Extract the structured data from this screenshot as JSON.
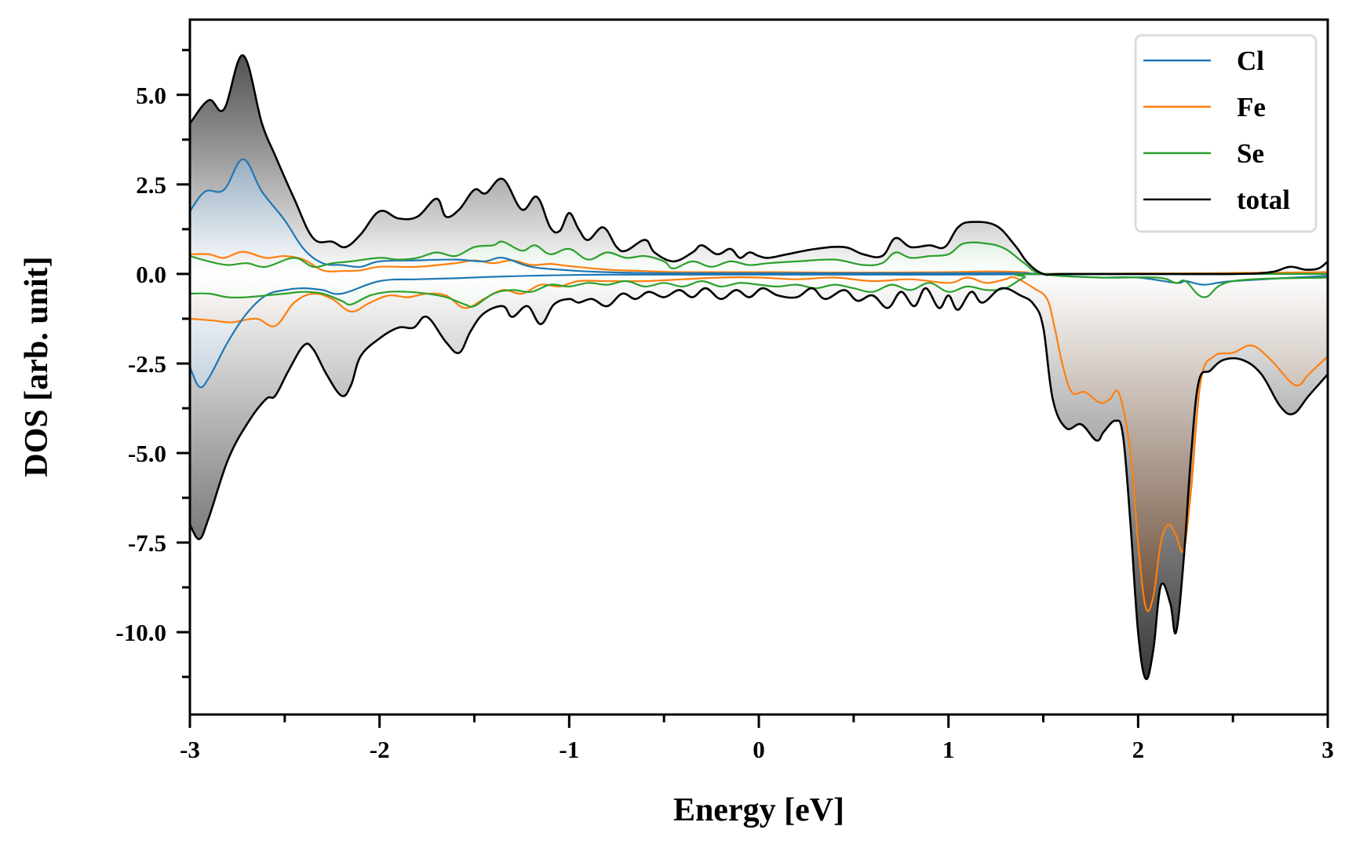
{
  "chart_data": {
    "type": "area",
    "title": "",
    "xlabel": "Energy [eV]",
    "ylabel": "DOS [arb. unit]",
    "xlim": [
      -3,
      3
    ],
    "ylim": [
      -12.3,
      7.1
    ],
    "xticks": [
      -3,
      -2,
      -1,
      0,
      1,
      2,
      3
    ],
    "xtick_labels": [
      "-3",
      "-2",
      "-1",
      "0",
      "1",
      "2",
      "3"
    ],
    "yticks": [
      5.0,
      2.5,
      0.0,
      -2.5,
      -5.0,
      -7.5,
      -10.0
    ],
    "ytick_labels": [
      "5.0",
      "2.5",
      "0.0",
      "-2.5",
      "-5.0",
      "-7.5",
      "-10.0"
    ],
    "grid": false,
    "legend": {
      "placement": "top-right",
      "entries": [
        {
          "label": "Cl",
          "color": "#1f77b4"
        },
        {
          "label": "Fe",
          "color": "#ff7f0e"
        },
        {
          "label": "Se",
          "color": "#2ca02c"
        },
        {
          "label": "total",
          "color": "#000000"
        }
      ]
    },
    "fill_colors": {
      "Cl": "#2b5c86",
      "Fe": "#4a2408",
      "Se": "#2f9a3a",
      "total": "#2a2a2a"
    },
    "series": [
      {
        "name": "total",
        "color": "#000000",
        "spin_up": {
          "x": [
            -3.0,
            -2.9,
            -2.82,
            -2.72,
            -2.62,
            -2.55,
            -2.45,
            -2.35,
            -2.25,
            -2.18,
            -2.1,
            -2.0,
            -1.9,
            -1.8,
            -1.7,
            -1.65,
            -1.58,
            -1.5,
            -1.44,
            -1.35,
            -1.25,
            -1.17,
            -1.1,
            -1.05,
            -1.0,
            -0.95,
            -0.9,
            -0.82,
            -0.75,
            -0.7,
            -0.6,
            -0.55,
            -0.45,
            -0.35,
            -0.3,
            -0.22,
            -0.15,
            -0.1,
            -0.05,
            0.0,
            0.05,
            0.15,
            0.3,
            0.45,
            0.55,
            0.65,
            0.72,
            0.8,
            0.9,
            0.98,
            1.05,
            1.12,
            1.25,
            1.35,
            1.42,
            1.5,
            1.6,
            2.0,
            2.5,
            2.7,
            2.8,
            2.88,
            2.95,
            3.0
          ],
          "y": [
            4.2,
            4.85,
            4.6,
            6.1,
            4.2,
            3.3,
            2.1,
            1.0,
            0.9,
            0.75,
            1.1,
            1.75,
            1.55,
            1.6,
            2.1,
            1.6,
            1.8,
            2.35,
            2.25,
            2.65,
            1.8,
            2.15,
            1.3,
            1.2,
            1.7,
            1.25,
            0.95,
            1.3,
            0.75,
            0.65,
            0.95,
            0.6,
            0.35,
            0.6,
            0.8,
            0.55,
            0.7,
            0.45,
            0.6,
            0.5,
            0.45,
            0.55,
            0.7,
            0.75,
            0.55,
            0.5,
            1.0,
            0.75,
            0.8,
            0.75,
            1.3,
            1.45,
            1.35,
            0.8,
            0.3,
            0.0,
            0.0,
            0.0,
            0.0,
            0.05,
            0.2,
            0.12,
            0.15,
            0.35
          ]
        },
        "spin_down": {
          "x": [
            -3.0,
            -2.95,
            -2.9,
            -2.8,
            -2.7,
            -2.6,
            -2.55,
            -2.48,
            -2.4,
            -2.35,
            -2.28,
            -2.2,
            -2.15,
            -2.1,
            -2.0,
            -1.9,
            -1.82,
            -1.75,
            -1.65,
            -1.58,
            -1.52,
            -1.45,
            -1.35,
            -1.3,
            -1.22,
            -1.15,
            -1.08,
            -1.0,
            -0.95,
            -0.88,
            -0.8,
            -0.72,
            -0.65,
            -0.58,
            -0.5,
            -0.42,
            -0.35,
            -0.28,
            -0.2,
            -0.12,
            -0.05,
            0.02,
            0.1,
            0.2,
            0.28,
            0.35,
            0.45,
            0.52,
            0.6,
            0.68,
            0.75,
            0.82,
            0.88,
            0.95,
            1.0,
            1.05,
            1.12,
            1.18,
            1.28,
            1.38,
            1.45,
            1.5,
            1.55,
            1.62,
            1.7,
            1.78,
            1.82,
            1.88,
            1.92,
            1.96,
            2.0,
            2.04,
            2.08,
            2.12,
            2.17,
            2.2,
            2.24,
            2.28,
            2.32,
            2.38,
            2.45,
            2.55,
            2.65,
            2.75,
            2.82,
            2.9,
            3.0
          ],
          "y": [
            -7.0,
            -7.4,
            -6.8,
            -5.2,
            -4.2,
            -3.5,
            -3.4,
            -2.7,
            -2.0,
            -2.1,
            -2.8,
            -3.4,
            -3.1,
            -2.3,
            -1.8,
            -1.5,
            -1.5,
            -1.2,
            -1.9,
            -2.2,
            -1.6,
            -1.1,
            -0.9,
            -1.2,
            -0.9,
            -1.4,
            -0.85,
            -0.7,
            -0.8,
            -0.7,
            -0.9,
            -0.55,
            -0.7,
            -0.5,
            -0.65,
            -0.45,
            -0.65,
            -0.4,
            -0.7,
            -0.45,
            -0.65,
            -0.4,
            -0.6,
            -0.65,
            -0.4,
            -0.7,
            -0.45,
            -0.75,
            -0.6,
            -0.95,
            -0.5,
            -0.9,
            -0.4,
            -0.95,
            -0.6,
            -1.0,
            -0.5,
            -0.8,
            -0.4,
            -0.6,
            -0.85,
            -1.5,
            -3.5,
            -4.3,
            -4.2,
            -4.65,
            -4.4,
            -4.1,
            -4.5,
            -7.0,
            -10.0,
            -11.3,
            -10.5,
            -8.7,
            -9.2,
            -10.0,
            -8.0,
            -5.0,
            -3.0,
            -2.7,
            -2.4,
            -2.4,
            -2.8,
            -3.7,
            -3.9,
            -3.4,
            -2.8
          ]
        }
      },
      {
        "name": "Cl",
        "color": "#1f77b4",
        "spin_up": {
          "x": [
            -3.0,
            -2.92,
            -2.82,
            -2.72,
            -2.62,
            -2.5,
            -2.4,
            -2.3,
            -2.2,
            -2.1,
            -2.0,
            -1.8,
            -1.6,
            -1.45,
            -1.35,
            -1.2,
            -1.0,
            -0.8,
            -0.5,
            0.0,
            0.5,
            1.0,
            1.4,
            1.6,
            1.8,
            2.0,
            2.2,
            2.25,
            2.35,
            2.5,
            3.0
          ],
          "y": [
            1.75,
            2.3,
            2.35,
            3.2,
            2.3,
            1.5,
            0.7,
            0.3,
            0.25,
            0.2,
            0.35,
            0.38,
            0.4,
            0.35,
            0.45,
            0.2,
            0.1,
            0.05,
            0.02,
            0.02,
            0.02,
            0.02,
            0.02,
            -0.05,
            -0.1,
            -0.1,
            -0.25,
            -0.2,
            -0.3,
            -0.2,
            -0.05
          ]
        },
        "spin_down": {
          "x": [
            -3.0,
            -2.95,
            -2.9,
            -2.8,
            -2.7,
            -2.6,
            -2.5,
            -2.4,
            -2.3,
            -2.2,
            -2.0,
            -1.8,
            -1.6,
            -1.4,
            -1.2,
            -1.0,
            -0.8,
            -0.5,
            0.0,
            0.5,
            1.0,
            1.5,
            3.0
          ],
          "y": [
            -2.6,
            -3.15,
            -2.9,
            -1.9,
            -1.1,
            -0.6,
            -0.45,
            -0.4,
            -0.45,
            -0.55,
            -0.2,
            -0.15,
            -0.12,
            -0.08,
            -0.05,
            -0.03,
            -0.02,
            -0.02,
            -0.02,
            -0.02,
            -0.02,
            -0.01,
            0.0
          ]
        }
      },
      {
        "name": "Fe",
        "color": "#ff7f0e",
        "spin_up": {
          "x": [
            -3.0,
            -2.9,
            -2.82,
            -2.72,
            -2.6,
            -2.5,
            -2.4,
            -2.3,
            -2.2,
            -2.1,
            -2.0,
            -1.8,
            -1.6,
            -1.5,
            -1.4,
            -1.3,
            -1.2,
            -1.1,
            -1.0,
            -0.8,
            -0.6,
            -0.4,
            0.0,
            0.5,
            1.0,
            1.2,
            1.4,
            1.6,
            3.0
          ],
          "y": [
            0.55,
            0.55,
            0.45,
            0.62,
            0.45,
            0.5,
            0.4,
            0.1,
            0.08,
            0.1,
            0.2,
            0.2,
            0.3,
            0.38,
            0.3,
            0.38,
            0.25,
            0.28,
            0.22,
            0.12,
            0.08,
            0.05,
            0.05,
            0.04,
            0.05,
            0.07,
            0.05,
            0.0,
            0.05
          ]
        },
        "spin_down": {
          "x": [
            -3.0,
            -2.88,
            -2.78,
            -2.65,
            -2.55,
            -2.45,
            -2.35,
            -2.25,
            -2.15,
            -2.05,
            -1.95,
            -1.85,
            -1.75,
            -1.65,
            -1.55,
            -1.45,
            -1.35,
            -1.25,
            -1.15,
            -1.05,
            -0.95,
            -0.8,
            -0.6,
            -0.4,
            -0.2,
            0.0,
            0.2,
            0.4,
            0.6,
            0.8,
            1.0,
            1.1,
            1.2,
            1.3,
            1.35,
            1.45,
            1.52,
            1.56,
            1.6,
            1.65,
            1.72,
            1.8,
            1.85,
            1.9,
            1.96,
            2.0,
            2.04,
            2.08,
            2.12,
            2.16,
            2.2,
            2.24,
            2.28,
            2.33,
            2.4,
            2.5,
            2.6,
            2.7,
            2.8,
            2.85,
            2.9,
            3.0
          ],
          "y": [
            -1.25,
            -1.3,
            -1.35,
            -1.25,
            -1.45,
            -0.8,
            -0.55,
            -0.7,
            -1.05,
            -0.8,
            -0.6,
            -0.65,
            -0.55,
            -0.6,
            -0.95,
            -0.7,
            -0.45,
            -0.55,
            -0.3,
            -0.35,
            -0.2,
            -0.2,
            -0.2,
            -0.15,
            -0.1,
            -0.1,
            -0.15,
            -0.1,
            -0.2,
            -0.15,
            -0.25,
            -0.1,
            -0.25,
            -0.15,
            -0.1,
            -0.4,
            -0.7,
            -1.5,
            -2.5,
            -3.3,
            -3.3,
            -3.6,
            -3.5,
            -3.35,
            -5.0,
            -7.5,
            -9.3,
            -9.0,
            -7.5,
            -7.0,
            -7.3,
            -7.7,
            -6.0,
            -3.0,
            -2.3,
            -2.2,
            -2.0,
            -2.4,
            -3.0,
            -3.1,
            -2.8,
            -2.3
          ]
        }
      },
      {
        "name": "Se",
        "color": "#2ca02c",
        "spin_up": {
          "x": [
            -3.0,
            -2.9,
            -2.8,
            -2.7,
            -2.6,
            -2.45,
            -2.35,
            -2.25,
            -2.15,
            -2.0,
            -1.9,
            -1.8,
            -1.7,
            -1.6,
            -1.5,
            -1.4,
            -1.35,
            -1.25,
            -1.18,
            -1.1,
            -1.0,
            -0.9,
            -0.8,
            -0.7,
            -0.6,
            -0.5,
            -0.45,
            -0.35,
            -0.25,
            -0.15,
            -0.05,
            0.05,
            0.2,
            0.4,
            0.55,
            0.65,
            0.72,
            0.8,
            0.9,
            1.0,
            1.08,
            1.2,
            1.3,
            1.4,
            1.5,
            1.8,
            2.1,
            2.2,
            2.25,
            2.35,
            2.5,
            3.0
          ],
          "y": [
            0.5,
            0.35,
            0.25,
            0.3,
            0.2,
            0.45,
            0.2,
            0.3,
            0.35,
            0.45,
            0.4,
            0.45,
            0.6,
            0.5,
            0.75,
            0.8,
            0.9,
            0.65,
            0.8,
            0.55,
            0.7,
            0.4,
            0.6,
            0.45,
            0.5,
            0.35,
            0.15,
            0.35,
            0.2,
            0.35,
            0.25,
            0.3,
            0.35,
            0.4,
            0.25,
            0.3,
            0.6,
            0.45,
            0.5,
            0.55,
            0.85,
            0.85,
            0.7,
            0.3,
            0.0,
            -0.1,
            -0.1,
            -0.25,
            -0.2,
            -0.65,
            -0.2,
            -0.1
          ]
        },
        "spin_down": {
          "x": [
            -3.0,
            -2.9,
            -2.8,
            -2.7,
            -2.6,
            -2.5,
            -2.4,
            -2.3,
            -2.2,
            -2.15,
            -2.05,
            -1.95,
            -1.85,
            -1.75,
            -1.65,
            -1.55,
            -1.5,
            -1.4,
            -1.3,
            -1.2,
            -1.1,
            -1.0,
            -0.9,
            -0.8,
            -0.7,
            -0.6,
            -0.5,
            -0.4,
            -0.3,
            -0.2,
            -0.1,
            0.0,
            0.1,
            0.2,
            0.3,
            0.4,
            0.5,
            0.6,
            0.7,
            0.8,
            0.9,
            1.0,
            1.1,
            1.2,
            1.3,
            1.4,
            1.5,
            3.0
          ],
          "y": [
            -0.55,
            -0.55,
            -0.65,
            -0.65,
            -0.6,
            -0.55,
            -0.5,
            -0.55,
            -0.75,
            -0.85,
            -0.6,
            -0.5,
            -0.5,
            -0.55,
            -0.65,
            -0.85,
            -0.9,
            -0.55,
            -0.45,
            -0.5,
            -0.3,
            -0.35,
            -0.25,
            -0.3,
            -0.2,
            -0.35,
            -0.25,
            -0.35,
            -0.2,
            -0.35,
            -0.25,
            -0.3,
            -0.35,
            -0.3,
            -0.4,
            -0.3,
            -0.4,
            -0.5,
            -0.3,
            -0.45,
            -0.25,
            -0.5,
            -0.35,
            -0.45,
            -0.4,
            -0.1,
            0.0,
            0.0
          ]
        }
      }
    ]
  }
}
